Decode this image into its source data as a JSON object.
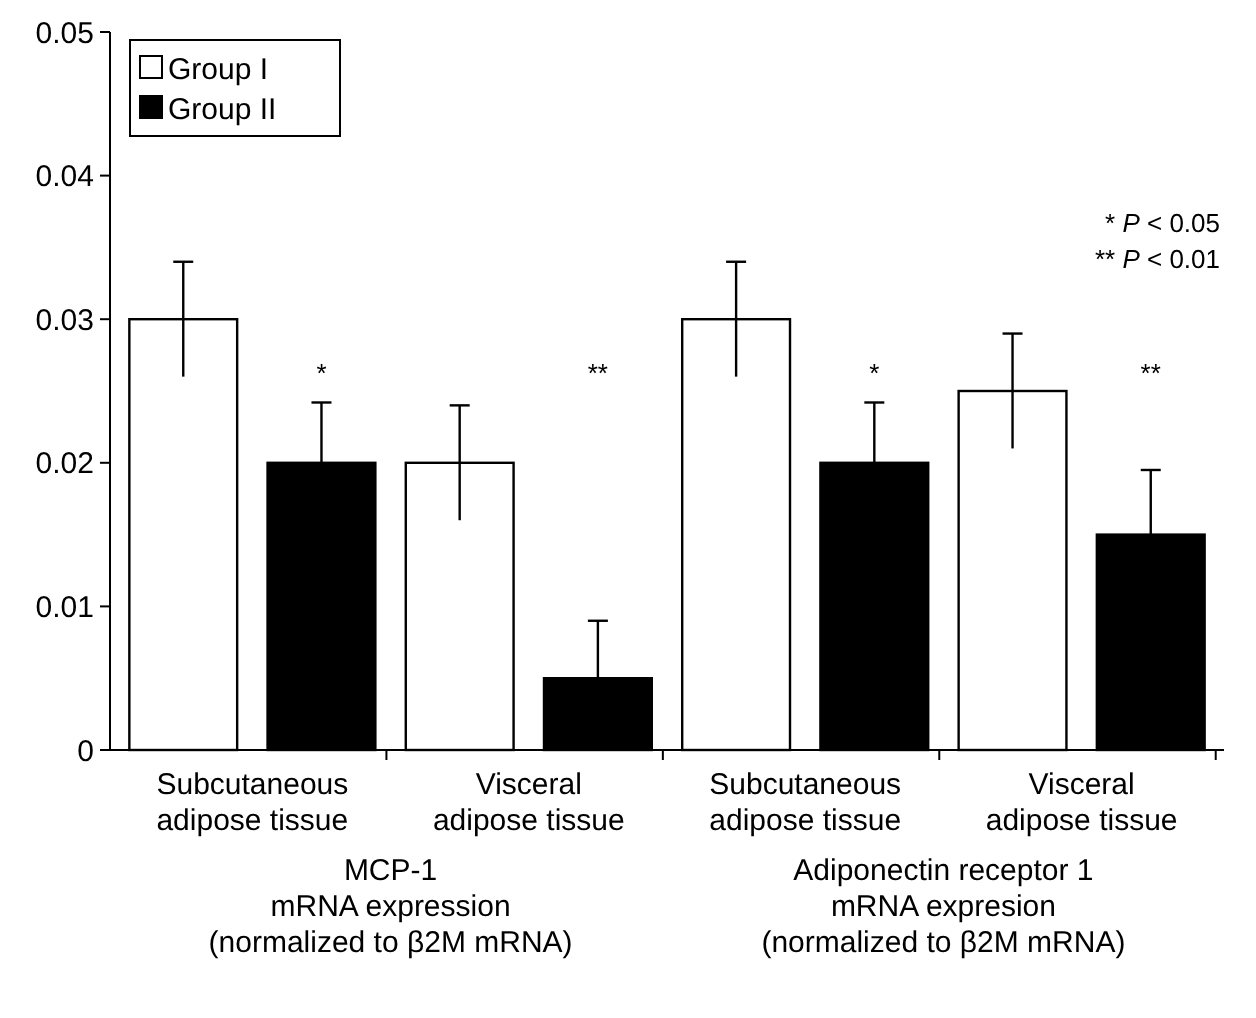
{
  "chart_data": {
    "type": "bar",
    "categories": [
      "Subcutaneous\nadipose tissue",
      "Visceral\nadipose tissue",
      "Subcutaneous\nadipose tissue",
      "Visceral\nadipose tissue"
    ],
    "series": [
      {
        "name": "Group I",
        "color": "#ffffff",
        "values": [
          0.03,
          0.02,
          0.03,
          0.025
        ],
        "errors": [
          0.004,
          0.004,
          0.004,
          0.004
        ]
      },
      {
        "name": "Group II",
        "color": "#000000",
        "values": [
          0.02,
          0.005,
          0.02,
          0.015
        ],
        "errors": [
          0.0042,
          0.004,
          0.0042,
          0.0045
        ]
      }
    ],
    "ylim": [
      0,
      0.05
    ],
    "yticks": [
      {
        "value": 0,
        "label": "0"
      },
      0.01,
      0.02,
      0.03,
      0.04,
      0.05
    ],
    "grid": false,
    "legend": "top left",
    "annotations": [
      "*",
      "**",
      "*",
      "**",
      "* P < 0.05",
      "** P < 0.01",
      "MCP-1\nmRNA expression\n(normalized to β2M mRNA)",
      "Adiponectin receptor 1\nmRNA expresion\n(normalized to β2M mRNA)"
    ]
  }
}
